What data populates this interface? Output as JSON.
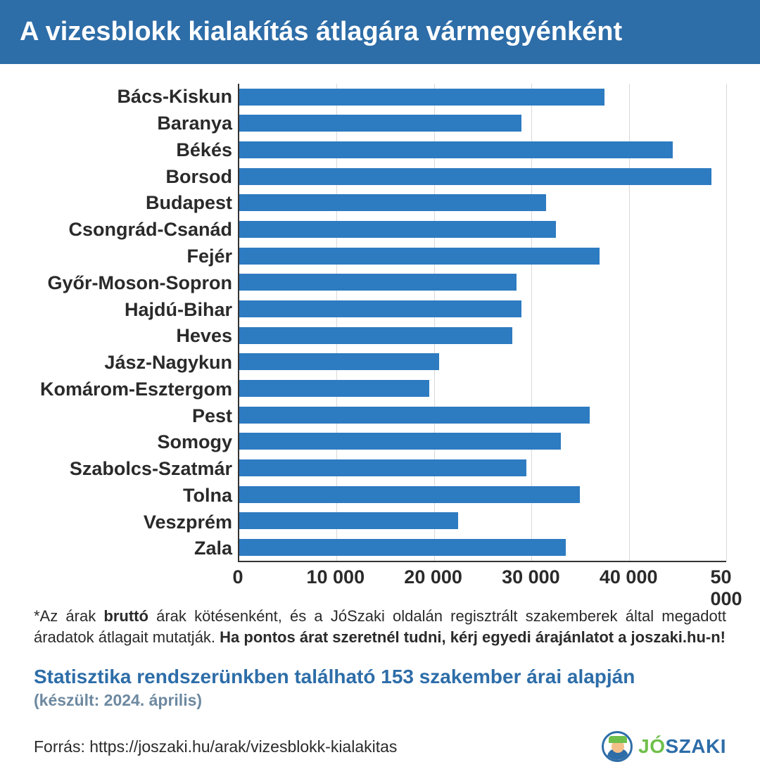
{
  "header": {
    "title": "A vizesblokk kialakítás átlagára vármegyénként"
  },
  "chart": {
    "type": "bar",
    "orientation": "horizontal",
    "bar_color": "#2d7bc1",
    "grid_color": "#d9d9d9",
    "axis_color": "#333333",
    "background_color": "#ffffff",
    "label_fontsize": 27,
    "tick_fontsize": 27,
    "xlim": [
      0,
      50000
    ],
    "xtick_step": 10000,
    "xticks": [
      "0",
      "10 000",
      "20 000",
      "30 000",
      "40 000",
      "50 000"
    ],
    "categories": [
      "Bács-Kiskun",
      "Baranya",
      "Békés",
      "Borsod",
      "Budapest",
      "Csongrád-Csanád",
      "Fejér",
      "Győr-Moson-Sopron",
      "Hajdú-Bihar",
      "Heves",
      "Jász-Nagykun",
      "Komárom-Esztergom",
      "Pest",
      "Somogy",
      "Szabolcs-Szatmár",
      "Tolna",
      "Veszprém",
      "Zala"
    ],
    "values": [
      37500,
      29000,
      44500,
      48500,
      31500,
      32500,
      37000,
      28500,
      29000,
      28000,
      20500,
      19500,
      36000,
      33000,
      29500,
      35000,
      22500,
      33500
    ]
  },
  "footnote": {
    "pre": "*Az árak ",
    "bold1": "bruttó",
    "mid": " árak kötésenként, és a JóSzaki oldalán regisztrált szakemberek által megadott áradatok átlagait mutatják. ",
    "bold2": "Ha pontos árat szeretnél tudni, kérj egyedi árajánlatot a joszaki.hu-n!"
  },
  "stats": {
    "line": "Statisztika rendszerünkben található 153 szakember árai alapján",
    "sub": "(készült: 2024. április)"
  },
  "source": {
    "label": "Forrás: https://joszaki.hu/arak/vizesblokk-kialakitas"
  },
  "logo": {
    "jo": "JÓ",
    "szaki": "SZAKI"
  }
}
